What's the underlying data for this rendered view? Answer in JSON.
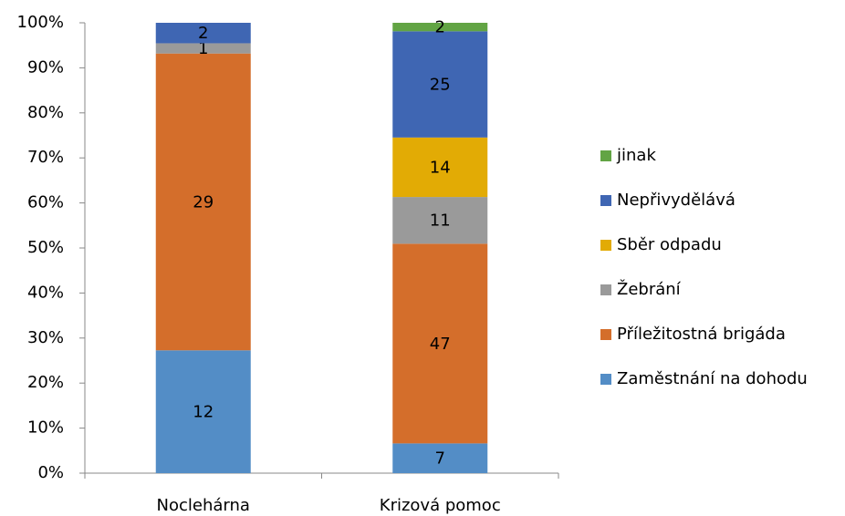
{
  "chart_data": {
    "type": "bar",
    "stacked": "percent",
    "categories": [
      "Noclehárna",
      "Krizová pomoc"
    ],
    "series": [
      {
        "name": "Zaměstnání na dohodu",
        "color": "#538dc6",
        "values": [
          12,
          7
        ]
      },
      {
        "name": "Příležitostná brigáda",
        "color": "#d46e2b",
        "values": [
          29,
          47
        ]
      },
      {
        "name": "Žebrání",
        "color": "#9a9a9a",
        "values": [
          1,
          11
        ]
      },
      {
        "name": "Sběr odpadu",
        "color": "#e2ab05",
        "values": [
          null,
          14
        ]
      },
      {
        "name": "Nepřivydělává",
        "color": "#3f66b3",
        "values": [
          2,
          25
        ]
      },
      {
        "name": "jinak",
        "color": "#62a444",
        "values": [
          null,
          2
        ]
      }
    ],
    "ylim": [
      0,
      100
    ],
    "yticks": [
      {
        "value": 0,
        "label": "0%"
      },
      {
        "value": 10,
        "label": "10%"
      },
      {
        "value": 20,
        "label": "20%"
      },
      {
        "value": 30,
        "label": "30%"
      },
      {
        "value": 40,
        "label": "40%"
      },
      {
        "value": 50,
        "label": "50%"
      },
      {
        "value": 60,
        "label": "60%"
      },
      {
        "value": 70,
        "label": "70%"
      },
      {
        "value": 80,
        "label": "80%"
      },
      {
        "value": 90,
        "label": "90%"
      },
      {
        "value": 100,
        "label": "100%"
      }
    ],
    "legend": "right"
  }
}
